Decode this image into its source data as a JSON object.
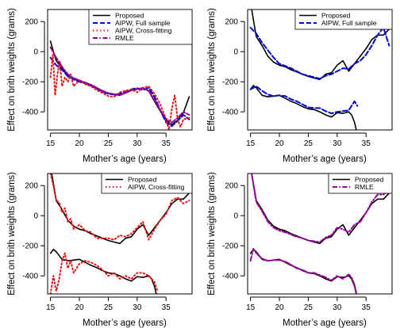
{
  "chart_data": [
    {
      "type": "line",
      "xlabel": "Mother’s age (years)",
      "ylabel": "Effect on brith weights (grams)",
      "xlim": [
        14.5,
        39.5
      ],
      "ylim": [
        -520,
        280
      ],
      "x_ticks": [
        15,
        20,
        25,
        30,
        35
      ],
      "y_ticks": [
        -400,
        -200,
        0,
        200
      ],
      "legend": {
        "placement": "top-right",
        "entries": [
          "Proposed",
          "AIPW, Full sample",
          "AIPW, Cross-fitting",
          "RMLE"
        ]
      },
      "series": [
        {
          "name": "Proposed",
          "color": "#000000",
          "style": "solid",
          "x": [
            15,
            15.5,
            16,
            17,
            18,
            19,
            20,
            21,
            22,
            23,
            24,
            25,
            26,
            27,
            28,
            29,
            30,
            31,
            32,
            33,
            34,
            35,
            36,
            37,
            38,
            39
          ],
          "y": [
            70,
            0,
            -60,
            -110,
            -160,
            -180,
            -195,
            -205,
            -220,
            -240,
            -262,
            -278,
            -285,
            -290,
            -275,
            -258,
            -250,
            -240,
            -262,
            -330,
            -395,
            -455,
            -485,
            -455,
            -405,
            -300
          ]
        },
        {
          "name": "AIPW, Full sample",
          "color": "#0000dd",
          "style": "dashed",
          "x": [
            15,
            16,
            17,
            18,
            19,
            20,
            21,
            22,
            23,
            24,
            25,
            26,
            27,
            28,
            29,
            30,
            31,
            32,
            33,
            34,
            35,
            36,
            37,
            38,
            39
          ],
          "y": [
            -40,
            -90,
            -120,
            -165,
            -185,
            -200,
            -210,
            -225,
            -245,
            -265,
            -280,
            -285,
            -280,
            -265,
            -250,
            -242,
            -255,
            -240,
            -300,
            -390,
            -470,
            -495,
            -460,
            -420,
            -450
          ]
        },
        {
          "name": "AIPW, Cross-fitting",
          "color": "#ee1111",
          "style": "dotted",
          "x": [
            15,
            15.4,
            15.8,
            16.2,
            16.6,
            17,
            17.5,
            18,
            18.5,
            19,
            20,
            21,
            22,
            23,
            24,
            25,
            26,
            27,
            28,
            29,
            30,
            31,
            32,
            33,
            34,
            35,
            35.5,
            36,
            36.5,
            37,
            37.5,
            38,
            39
          ],
          "y": [
            -170,
            -20,
            -290,
            -150,
            -60,
            -230,
            -170,
            -200,
            -150,
            -230,
            -190,
            -215,
            -230,
            -255,
            -275,
            -295,
            -300,
            -270,
            -260,
            -250,
            -270,
            -240,
            -230,
            -280,
            -350,
            -450,
            -520,
            -380,
            -290,
            -450,
            -500,
            -450,
            -440
          ]
        },
        {
          "name": "RMLE",
          "color": "#990099",
          "style": "dashdot",
          "x": [
            15,
            16,
            17,
            18,
            19,
            20,
            21,
            22,
            23,
            24,
            25,
            26,
            27,
            28,
            29,
            30,
            31,
            32,
            33,
            34,
            35,
            36,
            37,
            38,
            39
          ],
          "y": [
            30,
            -40,
            -100,
            -150,
            -175,
            -190,
            -205,
            -220,
            -240,
            -260,
            -275,
            -282,
            -288,
            -272,
            -256,
            -248,
            -242,
            -260,
            -320,
            -390,
            -445,
            -470,
            -440,
            -400,
            -420
          ]
        }
      ]
    },
    {
      "type": "line",
      "xlabel": "Mother’s age (years)",
      "ylabel": "Effect on brith weights (grams)",
      "xlim": [
        14.5,
        39.5
      ],
      "ylim": [
        -520,
        280
      ],
      "x_ticks": [
        15,
        20,
        25,
        30,
        35
      ],
      "y_ticks": [
        -400,
        -200,
        0,
        200
      ],
      "legend": {
        "placement": "top-right",
        "entries": [
          "Proposed",
          "AIPW, Full sample"
        ]
      },
      "series": [
        {
          "name": "Proposed",
          "color": "#000000",
          "style": "solid",
          "x": [
            15.2,
            16,
            17,
            18,
            19,
            20,
            21,
            22,
            23,
            24,
            25,
            26,
            27,
            28,
            29,
            30,
            31,
            32,
            33,
            34,
            35,
            36,
            37,
            38,
            39
          ],
          "y": [
            280,
            100,
            40,
            -30,
            -70,
            -90,
            -100,
            -120,
            -135,
            -150,
            -165,
            -175,
            -185,
            -150,
            -140,
            -90,
            -60,
            -130,
            -80,
            -30,
            20,
            80,
            110,
            110,
            150
          ]
        },
        {
          "name": "Proposed",
          "color": "#000000",
          "style": "solid",
          "x": [
            15,
            15.5,
            16,
            17,
            18,
            19,
            20,
            21,
            22,
            23,
            24,
            25,
            26,
            27,
            28,
            29,
            30,
            31,
            32,
            32.5,
            33,
            33.3
          ],
          "y": [
            -250,
            -225,
            -240,
            -290,
            -300,
            -295,
            -290,
            -310,
            -330,
            -345,
            -365,
            -380,
            -385,
            -400,
            -420,
            -435,
            -405,
            -410,
            -400,
            -420,
            -470,
            -520
          ]
        },
        {
          "name": "AIPW, Full sample",
          "color": "#0000dd",
          "style": "dashed",
          "x": [
            15,
            16,
            17,
            18,
            19,
            20,
            21,
            22,
            23,
            24,
            25,
            26,
            27,
            28,
            29,
            30,
            31,
            32,
            33,
            34,
            35,
            36,
            37,
            38,
            39
          ],
          "y": [
            160,
            120,
            60,
            10,
            -40,
            -80,
            -95,
            -110,
            -130,
            -150,
            -160,
            -170,
            -180,
            -160,
            -150,
            -130,
            -110,
            -115,
            -80,
            -60,
            -20,
            40,
            110,
            160,
            40
          ]
        },
        {
          "name": "AIPW, Full sample",
          "color": "#0000dd",
          "style": "dashed",
          "x": [
            15,
            16,
            17,
            18,
            19,
            20,
            21,
            22,
            23,
            24,
            25,
            26,
            27,
            28,
            29,
            30,
            31,
            32,
            33,
            33.5
          ],
          "y": [
            -250,
            -230,
            -260,
            -285,
            -295,
            -290,
            -295,
            -315,
            -330,
            -350,
            -370,
            -375,
            -375,
            -395,
            -410,
            -400,
            -395,
            -390,
            -330,
            -360
          ]
        }
      ]
    },
    {
      "type": "line",
      "xlabel": "Mother’s age (years)",
      "ylabel": "Effect on brith weights (grams)",
      "xlim": [
        14.5,
        39.5
      ],
      "ylim": [
        -520,
        280
      ],
      "x_ticks": [
        15,
        20,
        25,
        30,
        35
      ],
      "y_ticks": [
        -400,
        -200,
        0,
        200
      ],
      "legend": {
        "placement": "top-right",
        "entries": [
          "Proposed",
          "AIPW, Cross-fitting"
        ]
      },
      "series": [
        {
          "name": "Proposed",
          "color": "#000000",
          "style": "solid",
          "x": [
            15.2,
            16,
            17,
            18,
            19,
            20,
            21,
            22,
            23,
            24,
            25,
            26,
            27,
            28,
            29,
            30,
            31,
            32,
            33,
            34,
            35,
            36,
            37,
            38,
            39
          ],
          "y": [
            280,
            100,
            40,
            -30,
            -70,
            -90,
            -100,
            -120,
            -135,
            -150,
            -165,
            -175,
            -185,
            -150,
            -140,
            -90,
            -60,
            -130,
            -80,
            -30,
            20,
            80,
            110,
            110,
            150
          ]
        },
        {
          "name": "Proposed",
          "color": "#000000",
          "style": "solid",
          "x": [
            15,
            15.5,
            16,
            17,
            18,
            19,
            20,
            21,
            22,
            23,
            24,
            25,
            26,
            27,
            28,
            29,
            30,
            31,
            32,
            32.5,
            33,
            33.3
          ],
          "y": [
            -250,
            -225,
            -240,
            -290,
            -300,
            -295,
            -290,
            -310,
            -330,
            -345,
            -365,
            -380,
            -385,
            -400,
            -420,
            -435,
            -405,
            -410,
            -400,
            -420,
            -470,
            -520
          ]
        },
        {
          "name": "AIPW, Cross-fitting",
          "color": "#ee1111",
          "style": "dotted",
          "x": [
            15,
            15.5,
            16,
            16.5,
            17,
            17.5,
            18,
            18.5,
            19,
            20,
            21,
            22,
            23,
            24,
            25,
            26,
            27,
            28,
            29,
            30,
            31,
            32,
            33,
            34,
            35,
            36,
            37,
            38,
            39
          ],
          "y": [
            280,
            200,
            100,
            90,
            20,
            50,
            -40,
            -20,
            -90,
            -60,
            -100,
            -110,
            -150,
            -150,
            -150,
            -160,
            -130,
            -140,
            -120,
            -80,
            -40,
            -160,
            -90,
            -30,
            10,
            100,
            120,
            80,
            100
          ]
        },
        {
          "name": "AIPW, Cross-fitting",
          "color": "#ee1111",
          "style": "dotted",
          "x": [
            15,
            15.5,
            16,
            16.5,
            17,
            17.5,
            18,
            18.5,
            19,
            20,
            21,
            22,
            23,
            24,
            25,
            26,
            27,
            28,
            29,
            30,
            31,
            32,
            33,
            33.5
          ],
          "y": [
            -520,
            -400,
            -500,
            -420,
            -300,
            -250,
            -350,
            -300,
            -380,
            -320,
            -300,
            -310,
            -330,
            -360,
            -400,
            -380,
            -420,
            -400,
            -420,
            -380,
            -380,
            -400,
            -440,
            -500
          ]
        }
      ]
    },
    {
      "type": "line",
      "xlabel": "Mother’s age (years)",
      "ylabel": "Effect on brith weights (grams)",
      "xlim": [
        14.5,
        39.5
      ],
      "ylim": [
        -520,
        280
      ],
      "x_ticks": [
        15,
        20,
        25,
        30,
        35
      ],
      "y_ticks": [
        -400,
        -200,
        0,
        200
      ],
      "legend": {
        "placement": "top-right",
        "entries": [
          "Proposed",
          "RMLE"
        ]
      },
      "series": [
        {
          "name": "Proposed",
          "color": "#000000",
          "style": "solid",
          "x": [
            15.2,
            16,
            17,
            18,
            19,
            20,
            21,
            22,
            23,
            24,
            25,
            26,
            27,
            28,
            29,
            30,
            31,
            32,
            33,
            34,
            35,
            36,
            37,
            38,
            39
          ],
          "y": [
            280,
            100,
            40,
            -30,
            -70,
            -90,
            -100,
            -120,
            -135,
            -150,
            -165,
            -175,
            -185,
            -150,
            -140,
            -90,
            -60,
            -130,
            -80,
            -30,
            20,
            80,
            110,
            110,
            150
          ]
        },
        {
          "name": "Proposed",
          "color": "#000000",
          "style": "solid",
          "x": [
            15,
            15.5,
            16,
            17,
            18,
            19,
            20,
            21,
            22,
            23,
            24,
            25,
            26,
            27,
            28,
            29,
            30,
            31,
            32,
            32.5,
            33,
            33.3
          ],
          "y": [
            -250,
            -225,
            -240,
            -290,
            -300,
            -295,
            -290,
            -310,
            -330,
            -345,
            -365,
            -380,
            -385,
            -400,
            -420,
            -435,
            -405,
            -410,
            -400,
            -420,
            -470,
            -520
          ]
        },
        {
          "name": "RMLE",
          "color": "#990099",
          "style": "dashdot",
          "x": [
            15.2,
            16,
            17,
            18,
            19,
            20,
            21,
            22,
            23,
            24,
            25,
            26,
            27,
            28,
            29,
            30,
            31,
            32,
            33,
            34,
            35,
            36,
            37,
            38,
            39
          ],
          "y": [
            280,
            90,
            30,
            -40,
            -80,
            -100,
            -110,
            -125,
            -140,
            -150,
            -165,
            -170,
            -175,
            -145,
            -130,
            -80,
            -90,
            -110,
            -60,
            -40,
            20,
            90,
            140,
            140,
            170
          ]
        },
        {
          "name": "RMLE",
          "color": "#990099",
          "style": "dashdot",
          "x": [
            15,
            15.5,
            16,
            17,
            18,
            19,
            20,
            21,
            22,
            23,
            24,
            25,
            26,
            27,
            28,
            29,
            30,
            31,
            32,
            32.5,
            33,
            33.3
          ],
          "y": [
            -300,
            -220,
            -250,
            -285,
            -300,
            -295,
            -295,
            -305,
            -325,
            -350,
            -360,
            -380,
            -380,
            -395,
            -410,
            -430,
            -400,
            -420,
            -390,
            -410,
            -460,
            -510
          ]
        }
      ]
    }
  ]
}
